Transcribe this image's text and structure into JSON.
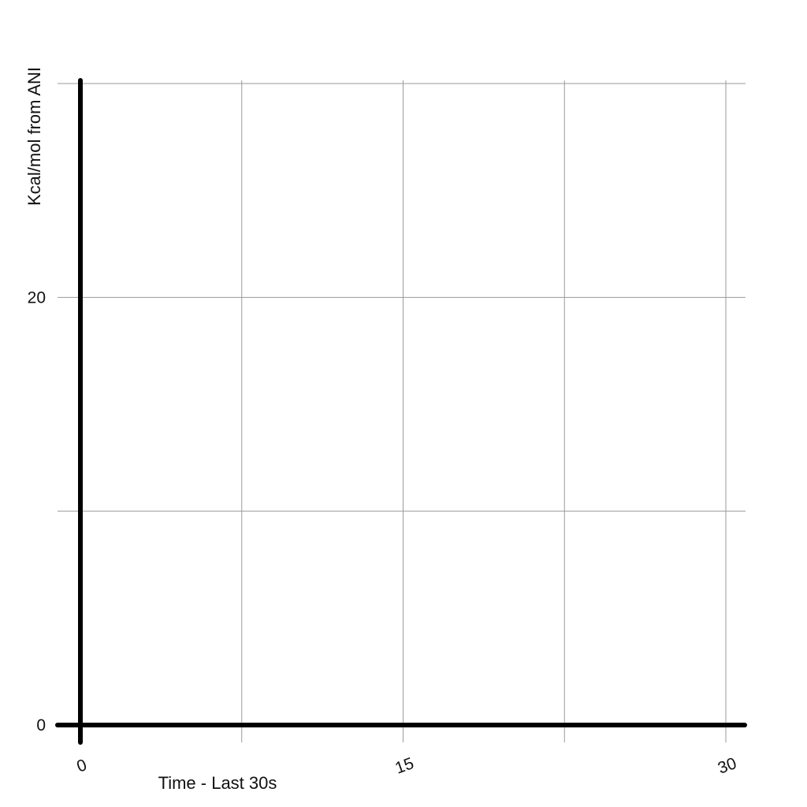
{
  "chart_data": {
    "type": "line",
    "xlabel": "Time - Last 30s",
    "ylabel": "Kcal/mol from ANI",
    "xlim": [
      0,
      30
    ],
    "ylim": [
      0,
      30
    ],
    "x_ticks": [
      {
        "value": 0,
        "label": "0"
      },
      {
        "value": 15,
        "label": "15"
      },
      {
        "value": 30,
        "label": "30"
      }
    ],
    "y_ticks": [
      {
        "value": 0,
        "label": "0"
      },
      {
        "value": 20,
        "label": "20"
      }
    ],
    "x_gridlines": [
      0,
      7.5,
      15,
      22.5,
      30
    ],
    "y_gridlines": [
      0,
      10,
      20,
      30
    ],
    "grid": true,
    "series": [],
    "colors": {
      "axis": "#000000",
      "grid": "#9a9a9a",
      "text": "#111111"
    }
  }
}
